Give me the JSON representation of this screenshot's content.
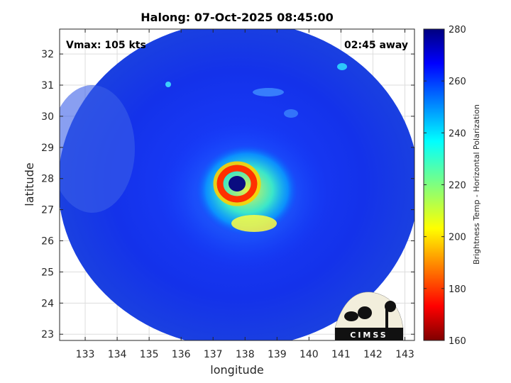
{
  "title": "Halong: 07-Oct-2025 08:45:00",
  "vmax_label": "Vmax: 105 kts",
  "time_label": "02:45 away",
  "xlabel": "longitude",
  "ylabel": "latitude",
  "colorbar": {
    "label": "Brightness Temp - Horizontal Polarization",
    "min": 160,
    "max": 280,
    "ticks": [
      160,
      180,
      200,
      220,
      240,
      260,
      280
    ],
    "colormap": "jet"
  },
  "logo": {
    "text": "CIMSS"
  },
  "chart_data": {
    "type": "heatmap",
    "title": "Halong: 07-Oct-2025 08:45:00",
    "xlabel": "longitude",
    "ylabel": "latitude",
    "xlim": [
      132.2,
      143.3
    ],
    "ylim": [
      22.8,
      32.8
    ],
    "xticks": [
      133,
      134,
      135,
      136,
      137,
      138,
      139,
      140,
      141,
      142,
      143
    ],
    "yticks": [
      23,
      24,
      25,
      26,
      27,
      28,
      29,
      30,
      31,
      32
    ],
    "grid": true,
    "storm_center": {
      "lon": 137.6,
      "lat": 27.85
    },
    "swath_center": {
      "lon": 137.75,
      "lat": 27.85
    },
    "colorbar_range": [
      160,
      280
    ],
    "colorbar_units_label": "Brightness Temp - Horizontal Polarization"
  }
}
